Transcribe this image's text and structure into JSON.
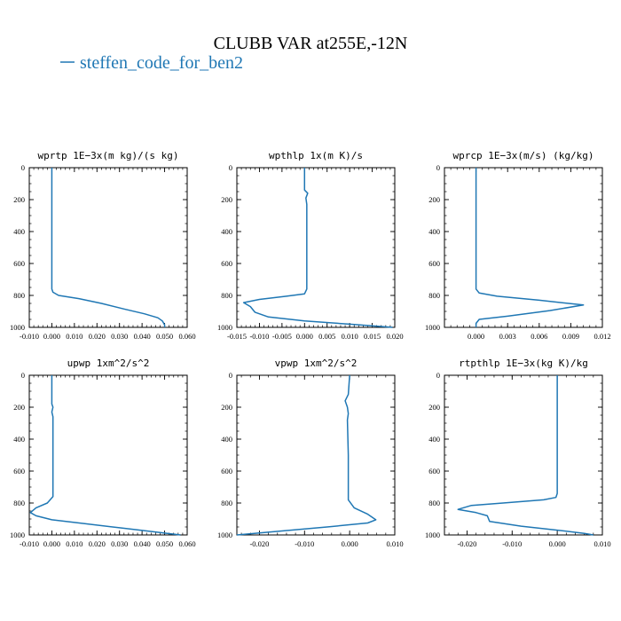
{
  "title": "CLUBB VAR at255E,-12N",
  "legend": {
    "label": "steffen_code_for_ben2",
    "color": "#1f77b4"
  },
  "chart_data": [
    {
      "type": "line",
      "title": "wprtp  1E−3x(m kg)/(s kg)",
      "xlim": [
        -0.01,
        0.06
      ],
      "ylim": [
        1000,
        0
      ],
      "xticks": [
        -0.01,
        0.0,
        0.01,
        0.02,
        0.03,
        0.04,
        0.05,
        0.06
      ],
      "xtick_labels": [
        "-0.010",
        "0.000",
        "0.010",
        "0.020",
        "0.030",
        "0.040",
        "0.050",
        "0.060"
      ],
      "yticks": [
        0,
        200,
        400,
        600,
        800,
        1000
      ],
      "ytick_labels": [
        "0",
        "200",
        "400",
        "600",
        "800",
        "1000"
      ],
      "series": [
        {
          "name": "steffen_code_for_ben2",
          "color": "#1f77b4",
          "points": [
            [
              0.0,
              0
            ],
            [
              0.0,
              300
            ],
            [
              0.0,
              600
            ],
            [
              0.0,
              760
            ],
            [
              0.0005,
              780
            ],
            [
              0.003,
              800
            ],
            [
              0.012,
              820
            ],
            [
              0.022,
              850
            ],
            [
              0.032,
              885
            ],
            [
              0.041,
              915
            ],
            [
              0.047,
              940
            ],
            [
              0.049,
              960
            ],
            [
              0.05,
              985
            ],
            [
              0.05,
              1000
            ]
          ]
        }
      ]
    },
    {
      "type": "line",
      "title": "wpthlp  1x(m K)/s",
      "xlim": [
        -0.015,
        0.02
      ],
      "ylim": [
        1000,
        0
      ],
      "xticks": [
        -0.015,
        -0.01,
        -0.005,
        0.0,
        0.005,
        0.01,
        0.015,
        0.02
      ],
      "xtick_labels": [
        "-0.015",
        "-0.010",
        "-0.005",
        "0.000",
        "0.005",
        "0.010",
        "0.015",
        "0.020"
      ],
      "yticks": [
        0,
        200,
        400,
        600,
        800,
        1000
      ],
      "ytick_labels": [
        "0",
        "200",
        "400",
        "600",
        "800",
        "1000"
      ],
      "series": [
        {
          "name": "steffen_code_for_ben2",
          "color": "#1f77b4",
          "points": [
            [
              0.0,
              0
            ],
            [
              0.0,
              140
            ],
            [
              0.0007,
              160
            ],
            [
              0.0003,
              190
            ],
            [
              0.0005,
              230
            ],
            [
              0.0005,
              400
            ],
            [
              0.0005,
              600
            ],
            [
              0.0005,
              760
            ],
            [
              0.0,
              790
            ],
            [
              -0.004,
              805
            ],
            [
              -0.01,
              825
            ],
            [
              -0.0135,
              845
            ],
            [
              -0.012,
              870
            ],
            [
              -0.011,
              905
            ],
            [
              -0.008,
              935
            ],
            [
              0.0,
              960
            ],
            [
              0.01,
              980
            ],
            [
              0.0195,
              1000
            ]
          ]
        }
      ]
    },
    {
      "type": "line",
      "title": "wprcp  1E−3x(m/s) (kg/kg)",
      "xlim": [
        -0.003,
        0.012
      ],
      "ylim": [
        1000,
        0
      ],
      "xticks": [
        0.0,
        0.003,
        0.006,
        0.009,
        0.012
      ],
      "xtick_labels": [
        "0.000",
        "0.003",
        "0.006",
        "0.009",
        "0.012"
      ],
      "yticks": [
        0,
        200,
        400,
        600,
        800,
        1000
      ],
      "ytick_labels": [
        "0",
        "200",
        "400",
        "600",
        "800",
        "1000"
      ],
      "series": [
        {
          "name": "steffen_code_for_ben2",
          "color": "#1f77b4",
          "points": [
            [
              0.0,
              0
            ],
            [
              0.0,
              400
            ],
            [
              0.0,
              760
            ],
            [
              0.0003,
              785
            ],
            [
              0.002,
              805
            ],
            [
              0.006,
              830
            ],
            [
              0.0102,
              860
            ],
            [
              0.007,
              895
            ],
            [
              0.003,
              930
            ],
            [
              0.0003,
              950
            ],
            [
              0.0,
              975
            ],
            [
              0.0,
              1000
            ]
          ]
        }
      ]
    },
    {
      "type": "line",
      "title": "upwp  1xm^2/s^2",
      "xlim": [
        -0.01,
        0.06
      ],
      "ylim": [
        1000,
        0
      ],
      "xticks": [
        -0.01,
        0.0,
        0.01,
        0.02,
        0.03,
        0.04,
        0.05,
        0.06
      ],
      "xtick_labels": [
        "-0.010",
        "0.000",
        "0.010",
        "0.020",
        "0.030",
        "0.040",
        "0.050",
        "0.060"
      ],
      "yticks": [
        0,
        200,
        400,
        600,
        800,
        1000
      ],
      "ytick_labels": [
        "0",
        "200",
        "400",
        "600",
        "800",
        "1000"
      ],
      "series": [
        {
          "name": "steffen_code_for_ben2",
          "color": "#1f77b4",
          "points": [
            [
              0.0,
              0
            ],
            [
              0.0,
              180
            ],
            [
              0.0005,
              200
            ],
            [
              0.0,
              230
            ],
            [
              0.0005,
              260
            ],
            [
              0.0005,
              500
            ],
            [
              0.0005,
              760
            ],
            [
              -0.002,
              800
            ],
            [
              -0.007,
              830
            ],
            [
              -0.0095,
              860
            ],
            [
              -0.007,
              880
            ],
            [
              0.0,
              905
            ],
            [
              0.015,
              930
            ],
            [
              0.03,
              955
            ],
            [
              0.045,
              980
            ],
            [
              0.057,
              1000
            ]
          ]
        }
      ]
    },
    {
      "type": "line",
      "title": "vpwp  1xm^2/s^2",
      "xlim": [
        -0.025,
        0.01
      ],
      "ylim": [
        1000,
        0
      ],
      "xticks": [
        -0.02,
        -0.01,
        0.0,
        0.01
      ],
      "xtick_labels": [
        "-0.020",
        "-0.010",
        "0.000",
        "0.010"
      ],
      "yticks": [
        0,
        200,
        400,
        600,
        800,
        1000
      ],
      "ytick_labels": [
        "0",
        "200",
        "400",
        "600",
        "800",
        "1000"
      ],
      "series": [
        {
          "name": "steffen_code_for_ben2",
          "color": "#1f77b4",
          "points": [
            [
              0.0,
              0
            ],
            [
              -0.0003,
              120
            ],
            [
              -0.001,
              160
            ],
            [
              -0.0005,
              200
            ],
            [
              -0.0003,
              240
            ],
            [
              -0.0005,
              280
            ],
            [
              -0.0003,
              500
            ],
            [
              -0.0003,
              780
            ],
            [
              0.001,
              830
            ],
            [
              0.004,
              870
            ],
            [
              0.0058,
              905
            ],
            [
              0.004,
              925
            ],
            [
              -0.005,
              950
            ],
            [
              -0.015,
              975
            ],
            [
              -0.025,
              1000
            ]
          ]
        }
      ]
    },
    {
      "type": "line",
      "title": "rtpthlp  1E−3x(kg K)/kg",
      "xlim": [
        -0.025,
        0.01
      ],
      "ylim": [
        1000,
        0
      ],
      "xticks": [
        -0.02,
        -0.01,
        0.0,
        0.01
      ],
      "xtick_labels": [
        "-0.020",
        "-0.010",
        "0.000",
        "0.010"
      ],
      "yticks": [
        0,
        200,
        400,
        600,
        800,
        1000
      ],
      "ytick_labels": [
        "0",
        "200",
        "400",
        "600",
        "800",
        "1000"
      ],
      "series": [
        {
          "name": "steffen_code_for_ben2",
          "color": "#1f77b4",
          "points": [
            [
              0.0,
              0
            ],
            [
              0.0,
              400
            ],
            [
              0.0,
              740
            ],
            [
              -0.0003,
              765
            ],
            [
              -0.003,
              780
            ],
            [
              -0.012,
              800
            ],
            [
              -0.019,
              815
            ],
            [
              -0.022,
              840
            ],
            [
              -0.018,
              860
            ],
            [
              -0.0155,
              880
            ],
            [
              -0.015,
              915
            ],
            [
              -0.008,
              945
            ],
            [
              0.0,
              970
            ],
            [
              0.006,
              990
            ],
            [
              0.008,
              1000
            ]
          ]
        }
      ]
    }
  ]
}
